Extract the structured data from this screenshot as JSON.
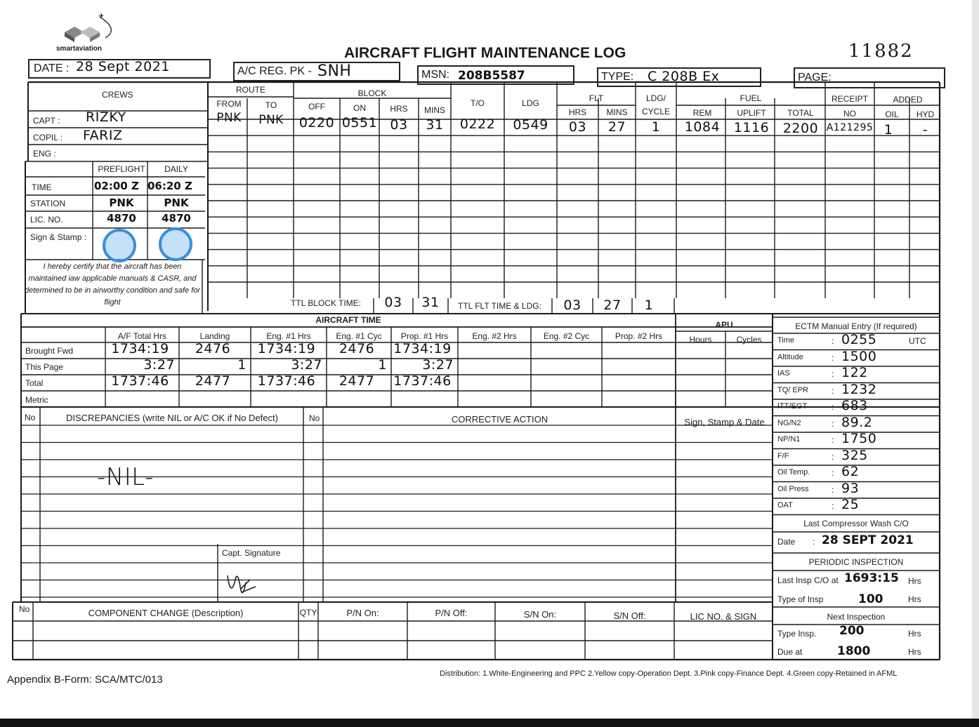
{
  "header": {
    "logo_text": "smartaviation",
    "title": "AIRCRAFT FLIGHT MAINTENANCE LOG",
    "serial_number": "11882",
    "date_label": "DATE :",
    "date_value": "28 Sept 2021",
    "reg_label": "A/C REG. PK -",
    "reg_value": "SNH",
    "msn_label": "MSN:",
    "msn_value": "208B5587",
    "type_label": "TYPE:",
    "type_value": "C 208B Ex",
    "page_label": "PAGE:"
  },
  "crews": {
    "title": "CREWS",
    "capt_label": "CAPT :",
    "capt_value": "RIZKY",
    "copil_label": "COPIL :",
    "copil_value": "FARIZ",
    "eng_label": "ENG :",
    "preflight": "PREFLIGHT",
    "daily": "DAILY",
    "time_label": "TIME",
    "time_preflight": "02:00 Z",
    "time_daily": "06:20 Z",
    "station_label": "STATION",
    "station_preflight": "PNK",
    "station_daily": "PNK",
    "lic_label": "LIC. NO.",
    "lic_preflight": "4870",
    "lic_daily": "4870",
    "sign_label": "Sign & Stamp :",
    "certify": "I hereby certify that the aircraft has been maintained iaw applicable manuals & CASR, and determined to be in airworthy condition and safe for flight"
  },
  "flight_table": {
    "headers": {
      "route": "ROUTE",
      "from": "FROM",
      "to": "TO",
      "block": "BLOCK",
      "off": "OFF",
      "on": "ON",
      "hrs": "HRS",
      "mins": "MINS",
      "to_col": "T/O",
      "ldg": "LDG",
      "flt": "FLT",
      "flt_hrs": "HRS",
      "flt_mins": "MINS",
      "ldg_cycle_1": "LDG/",
      "ldg_cycle_2": "CYCLE",
      "fuel": "FUEL",
      "rem": "REM",
      "uplift": "UPLIFT",
      "total": "TOTAL",
      "receipt": "RECEIPT",
      "receipt_no": "NO",
      "added": "ADDED",
      "oil": "OIL",
      "hyd": "HYD"
    },
    "row": {
      "from": "PNK",
      "to": "PNK",
      "off": "0220",
      "on": "0551",
      "hrs": "03",
      "mins": "31",
      "to_time": "0222",
      "ldg": "0549",
      "flt_hrs": "03",
      "flt_mins": "27",
      "ldg_cycle": "1",
      "rem": "1084",
      "uplift": "1116",
      "total": "2200",
      "receipt_no": "A121295",
      "oil": "1",
      "hyd": "-"
    },
    "ttl_block_label": "TTL BLOCK TIME:",
    "ttl_block_hrs": "03",
    "ttl_block_mins": "31",
    "ttl_flt_label": "TTL FLT TIME & LDG:",
    "ttl_flt_hrs": "03",
    "ttl_flt_mins": "27",
    "ttl_ldg": "1"
  },
  "aircraft_time": {
    "title": "AIRCRAFT TIME",
    "columns": [
      "A/F Total Hrs",
      "Landing",
      "Eng. #1 Hrs",
      "Eng. #1 Cyc",
      "Prop. #1 Hrs",
      "Eng. #2 Hrs",
      "Eng. #2 Cyc",
      "Prop. #2 Hrs"
    ],
    "apu": "APU",
    "apu_hours": "Hours",
    "apu_cycles": "Cycles",
    "rows": [
      {
        "label": "Brought Fwd",
        "values": [
          "1734:19",
          "2476",
          "1734:19",
          "2476",
          "1734:19"
        ]
      },
      {
        "label": "This Page",
        "values": [
          "3:27",
          "1",
          "3:27",
          "1",
          "3:27"
        ]
      },
      {
        "label": "Total",
        "values": [
          "1737:46",
          "2477",
          "1737:46",
          "2477",
          "1737:46"
        ]
      },
      {
        "label": "Metric",
        "values": []
      }
    ]
  },
  "discrepancies": {
    "no_label": "No",
    "title": "DISCREPANCIES (write NIL or A/C OK if No Defect)",
    "entry": "-NIL-",
    "ca_no_label": "No",
    "corrective_action": "CORRECTIVE ACTION",
    "sign_stamp_date": "Sign, Stamp & Date",
    "capt_signature": "Capt. Signature"
  },
  "ectm": {
    "title": "ECTM Manual Entry (If required)",
    "rows": [
      {
        "label": "Time",
        "value": "0255",
        "unit": "UTC"
      },
      {
        "label": "Altitude",
        "value": "1500"
      },
      {
        "label": "IAS",
        "value": "122"
      },
      {
        "label": "TQ/ EPR",
        "value": "1232"
      },
      {
        "label": "ITT/EGT",
        "value": "683"
      },
      {
        "label": "NG/N2",
        "value": "89.2"
      },
      {
        "label": "NP/N1",
        "value": "1750"
      },
      {
        "label": "F/F",
        "value": "325"
      },
      {
        "label": "Oil Temp.",
        "value": "62"
      },
      {
        "label": "Oil Press",
        "value": "93"
      },
      {
        "label": "OAT",
        "value": "25"
      }
    ],
    "compressor_wash": "Last Compressor Wash C/O",
    "wash_date_label": "Date",
    "wash_date_value": "28 SEPT 2021",
    "periodic": "PERIODIC INSPECTION",
    "last_insp_label": "Last Insp C/O at",
    "last_insp_value": "1693:15",
    "last_insp_unit": "Hrs",
    "type_insp_label": "Type of Insp",
    "type_insp_value": "100",
    "type_insp_unit": "Hrs",
    "next": "Next Inspection",
    "next_type_label": "Type Insp.",
    "next_type_value": "200",
    "next_type_unit": "Hrs",
    "due_label": "Due at",
    "due_value": "1800",
    "due_unit": "Hrs"
  },
  "component_change": {
    "no_label": "No",
    "title": "COMPONENT CHANGE (Description)",
    "qty": "QTY",
    "pn_on": "P/N On:",
    "pn_off": "P/N Off:",
    "sn_on": "S/N On:",
    "sn_off": "S/N Off:",
    "lic_sign": "LIC NO. & SIGN"
  },
  "footer": {
    "form_no": "Appendix B-Form: SCA/MTC/013",
    "distribution": "Distribution: 1.White-Engineering and PPC  2.Yellow copy-Operation Dept.  3.Pink copy-Finance Dept.  4.Green copy-Retained in AFML"
  },
  "colors": {
    "ink": "#111111",
    "stamp": "#3a8fd8",
    "paper": "#ffffff"
  }
}
